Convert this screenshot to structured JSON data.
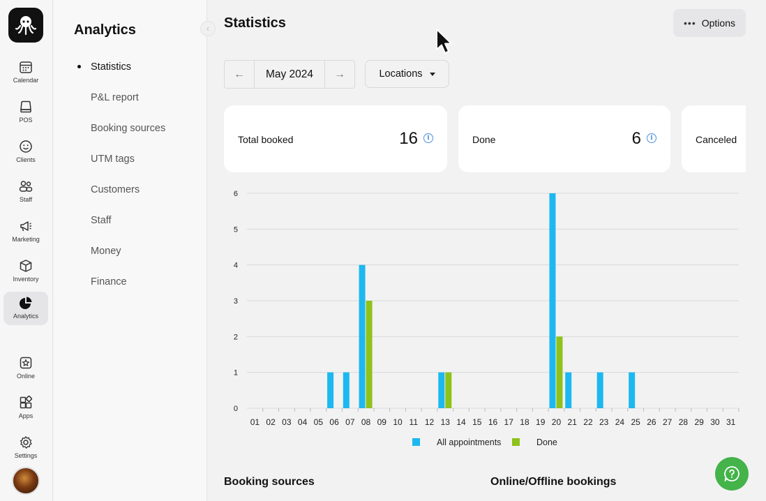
{
  "rail": {
    "items": [
      {
        "label": "Calendar",
        "icon": "calendar-icon"
      },
      {
        "label": "POS",
        "icon": "pos-icon"
      },
      {
        "label": "Clients",
        "icon": "smiley-icon"
      },
      {
        "label": "Staff",
        "icon": "staff-icon"
      },
      {
        "label": "Marketing",
        "icon": "megaphone-icon"
      },
      {
        "label": "Inventory",
        "icon": "box-icon"
      },
      {
        "label": "Analytics",
        "icon": "pie-chart-icon"
      },
      {
        "label": "Online",
        "icon": "online-booking-icon"
      },
      {
        "label": "Apps",
        "icon": "apps-icon"
      },
      {
        "label": "Settings",
        "icon": "gear-icon"
      }
    ],
    "active": "Analytics"
  },
  "subnav": {
    "title": "Analytics",
    "items": [
      "Statistics",
      "P&L report",
      "Booking sources",
      "UTM tags",
      "Customers",
      "Staff",
      "Money",
      "Finance"
    ],
    "active": "Statistics"
  },
  "main": {
    "title": "Statistics",
    "options_label": "Options",
    "month": "May 2024",
    "locations_label": "Locations",
    "stats": [
      {
        "label": "Total booked",
        "value": "16"
      },
      {
        "label": "Done",
        "value": "6"
      },
      {
        "label": "Canceled",
        "value": ""
      }
    ],
    "sections": [
      "Booking sources",
      "Online/Offline bookings"
    ]
  },
  "colors": {
    "all": "#1db8f0",
    "done": "#8fc21a",
    "help": "#43b34a"
  },
  "chart_data": {
    "type": "bar",
    "categories": [
      "01",
      "02",
      "03",
      "04",
      "05",
      "06",
      "07",
      "08",
      "09",
      "10",
      "11",
      "12",
      "13",
      "14",
      "15",
      "16",
      "17",
      "18",
      "19",
      "20",
      "21",
      "22",
      "23",
      "24",
      "25",
      "26",
      "27",
      "28",
      "29",
      "30",
      "31"
    ],
    "series": [
      {
        "name": "All appointments",
        "values": [
          0,
          0,
          0,
          0,
          0,
          1,
          1,
          4,
          0,
          0,
          0,
          0,
          1,
          0,
          0,
          0,
          0,
          0,
          0,
          6,
          1,
          0,
          1,
          0,
          1,
          0,
          0,
          0,
          0,
          0,
          0
        ]
      },
      {
        "name": "Done",
        "values": [
          0,
          0,
          0,
          0,
          0,
          0,
          0,
          3,
          0,
          0,
          0,
          0,
          1,
          0,
          0,
          0,
          0,
          0,
          0,
          2,
          0,
          0,
          0,
          0,
          0,
          0,
          0,
          0,
          0,
          0,
          0
        ]
      }
    ],
    "yticks": [
      0,
      1,
      2,
      3,
      4,
      5,
      6
    ],
    "ylim": [
      0,
      6
    ],
    "grid": true,
    "legend": "bottom-center"
  }
}
